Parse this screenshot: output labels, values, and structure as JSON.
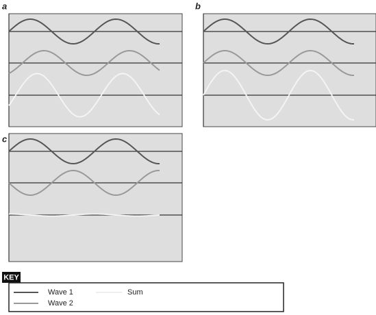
{
  "panels": [
    {
      "label": "a"
    },
    {
      "label": "b"
    },
    {
      "label": "c"
    }
  ],
  "key": {
    "title": "KEY",
    "items": [
      {
        "label": "Wave 1"
      },
      {
        "label": "Wave 2"
      },
      {
        "label": "Sum"
      }
    ]
  }
}
